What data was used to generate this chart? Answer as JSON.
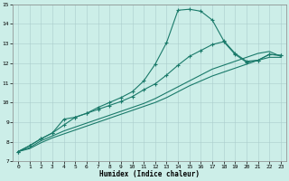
{
  "xlabel": "Humidex (Indice chaleur)",
  "bg_color": "#cceee8",
  "line_color": "#1a7a6a",
  "grid_color": "#aacccc",
  "xlim": [
    -0.5,
    23.5
  ],
  "ylim": [
    7,
    15
  ],
  "xticks": [
    0,
    1,
    2,
    3,
    4,
    5,
    6,
    7,
    8,
    9,
    10,
    11,
    12,
    13,
    14,
    15,
    16,
    17,
    18,
    19,
    20,
    21,
    22,
    23
  ],
  "yticks": [
    7,
    8,
    9,
    10,
    11,
    12,
    13,
    14,
    15
  ],
  "line1_x": [
    0,
    1,
    2,
    3,
    4,
    5,
    6,
    7,
    8,
    9,
    10,
    11,
    12,
    13,
    14,
    15,
    16,
    17,
    18,
    19,
    20,
    21,
    22,
    23
  ],
  "line1_y": [
    7.5,
    7.8,
    8.15,
    8.45,
    8.85,
    9.25,
    9.45,
    9.75,
    10.0,
    10.25,
    10.55,
    11.1,
    11.95,
    13.05,
    14.7,
    14.75,
    14.65,
    14.2,
    13.15,
    12.5,
    12.1,
    12.15,
    12.45,
    12.4
  ],
  "line2_x": [
    0,
    1,
    2,
    3,
    4,
    5,
    6,
    7,
    8,
    9,
    10,
    11,
    12,
    13,
    14,
    15,
    16,
    17,
    18,
    19,
    20,
    21,
    22,
    23
  ],
  "line2_y": [
    7.5,
    7.8,
    8.15,
    8.45,
    9.15,
    9.25,
    9.45,
    9.65,
    9.85,
    10.05,
    10.3,
    10.65,
    10.95,
    11.4,
    11.9,
    12.35,
    12.65,
    12.95,
    13.1,
    12.45,
    12.05,
    12.15,
    12.45,
    12.4
  ],
  "line3_x": [
    0,
    1,
    2,
    3,
    4,
    5,
    6,
    7,
    8,
    9,
    10,
    11,
    12,
    13,
    14,
    15,
    16,
    17,
    18,
    19,
    20,
    21,
    22,
    23
  ],
  "line3_y": [
    7.5,
    7.7,
    8.05,
    8.3,
    8.55,
    8.75,
    8.95,
    9.15,
    9.35,
    9.55,
    9.75,
    9.95,
    10.2,
    10.5,
    10.8,
    11.1,
    11.4,
    11.7,
    11.9,
    12.1,
    12.3,
    12.5,
    12.6,
    12.35
  ],
  "line4_x": [
    0,
    1,
    2,
    3,
    4,
    5,
    6,
    7,
    8,
    9,
    10,
    11,
    12,
    13,
    14,
    15,
    16,
    17,
    18,
    19,
    20,
    21,
    22,
    23
  ],
  "line4_y": [
    7.5,
    7.65,
    7.95,
    8.2,
    8.4,
    8.6,
    8.8,
    9.0,
    9.2,
    9.4,
    9.6,
    9.8,
    10.0,
    10.25,
    10.55,
    10.85,
    11.1,
    11.35,
    11.55,
    11.75,
    11.95,
    12.15,
    12.3,
    12.3
  ]
}
